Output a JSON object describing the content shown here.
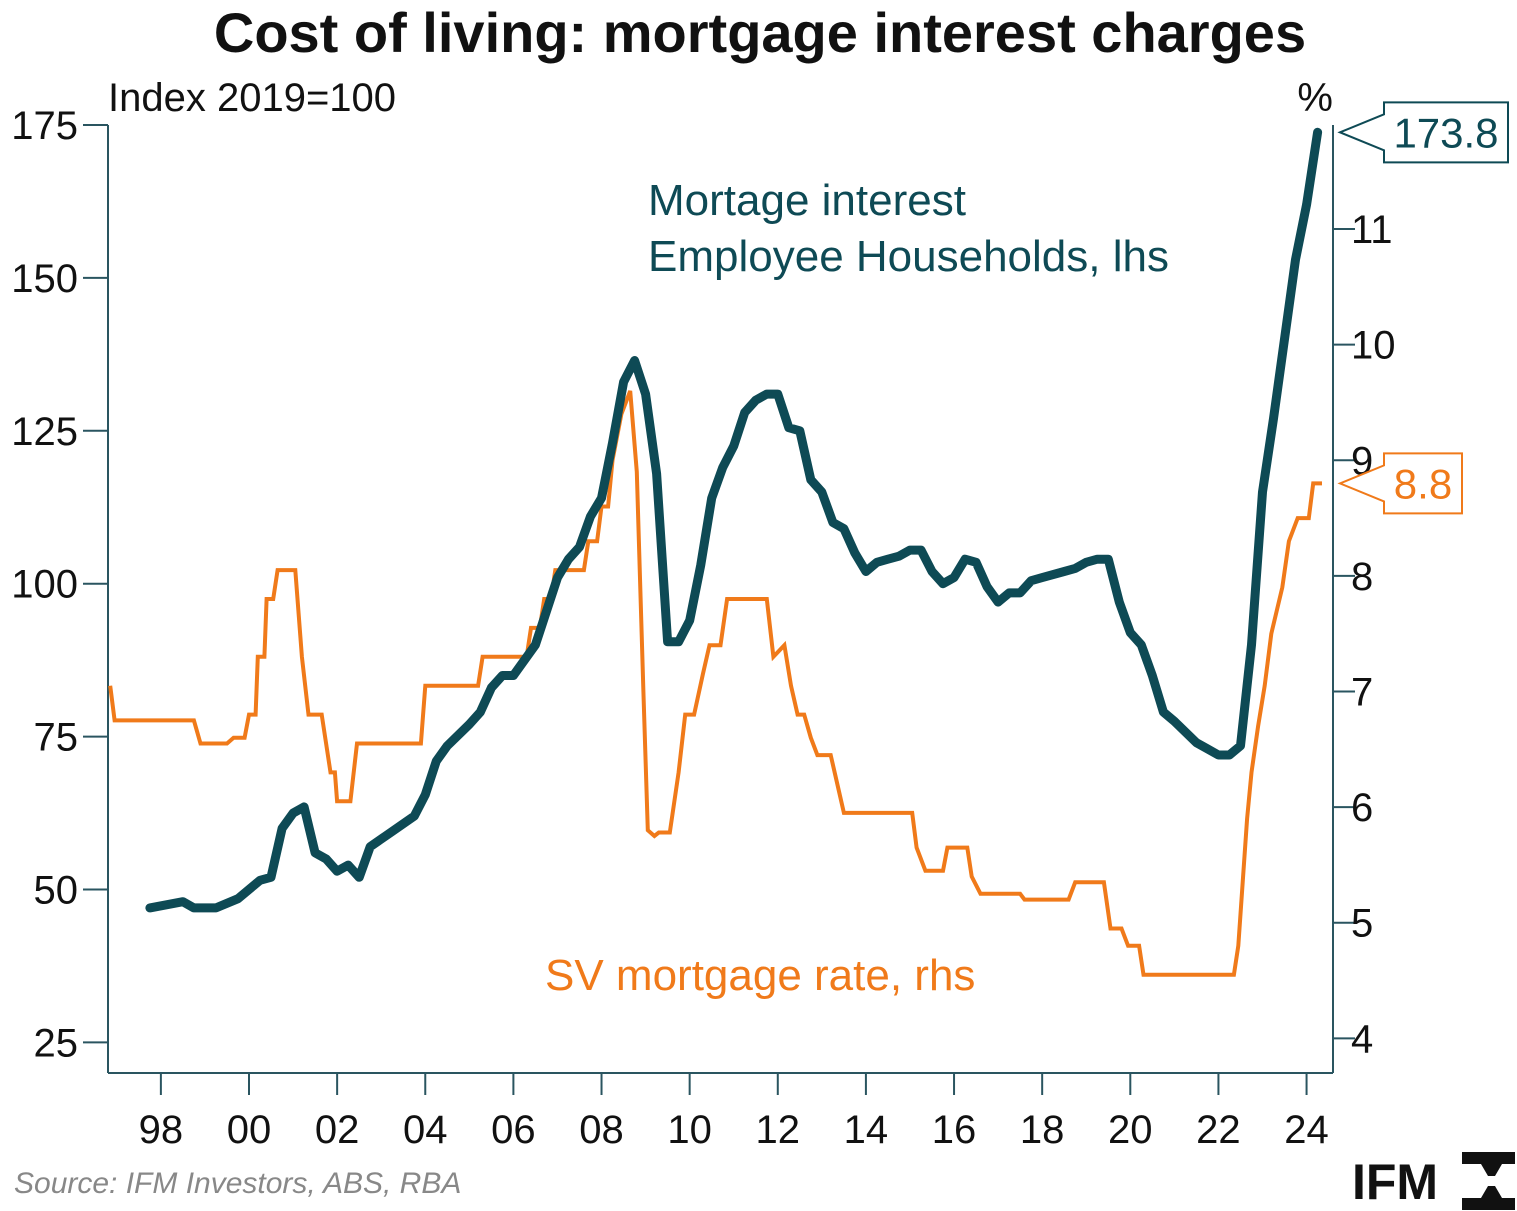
{
  "colors": {
    "teal": "#0e4a55",
    "orange": "#f07a1a",
    "axis": "#2a5560",
    "text": "#111111",
    "source": "#888888"
  },
  "chart_data": {
    "type": "line",
    "title": "Cost of living: mortgage interest charges",
    "ylabel_left": "Index 2019=100",
    "ylabel_right": "%",
    "x_ticks": [
      "98",
      "00",
      "02",
      "04",
      "06",
      "08",
      "10",
      "12",
      "14",
      "16",
      "18",
      "20",
      "22",
      "24"
    ],
    "x_tick_years": [
      1998,
      2000,
      2002,
      2004,
      2006,
      2008,
      2010,
      2012,
      2014,
      2016,
      2018,
      2020,
      2022,
      2024
    ],
    "xlim": [
      1996.8,
      2024.6
    ],
    "ylim_left": [
      20,
      175
    ],
    "y_ticks_left": [
      25,
      50,
      75,
      100,
      125,
      150,
      175
    ],
    "ylim_right": [
      3.7,
      11.9
    ],
    "y_ticks_right": [
      4,
      5,
      6,
      7,
      8,
      9,
      10,
      11
    ],
    "series": [
      {
        "name": "Mortage interest Employee Households, lhs",
        "label_lines": [
          "Mortage interest",
          "Employee Households, lhs"
        ],
        "axis": "left",
        "end_value": "173.8",
        "points": [
          [
            1997.75,
            47
          ],
          [
            1998.5,
            48
          ],
          [
            1998.75,
            47
          ],
          [
            1999.25,
            47
          ],
          [
            1999.75,
            48.5
          ],
          [
            2000.25,
            51.5
          ],
          [
            2000.5,
            52
          ],
          [
            2000.75,
            60
          ],
          [
            2001.0,
            62.5
          ],
          [
            2001.25,
            63.5
          ],
          [
            2001.5,
            56
          ],
          [
            2001.75,
            55
          ],
          [
            2002.0,
            53
          ],
          [
            2002.25,
            54
          ],
          [
            2002.5,
            52
          ],
          [
            2002.75,
            57
          ],
          [
            2003.25,
            59.5
          ],
          [
            2003.75,
            62
          ],
          [
            2004.0,
            65.5
          ],
          [
            2004.25,
            71
          ],
          [
            2004.5,
            73.5
          ],
          [
            2005.0,
            77
          ],
          [
            2005.25,
            79
          ],
          [
            2005.5,
            83
          ],
          [
            2005.75,
            85
          ],
          [
            2006.0,
            85
          ],
          [
            2006.5,
            90
          ],
          [
            2007.0,
            101
          ],
          [
            2007.25,
            104
          ],
          [
            2007.5,
            106
          ],
          [
            2007.75,
            111
          ],
          [
            2008.0,
            114
          ],
          [
            2008.25,
            123
          ],
          [
            2008.5,
            133
          ],
          [
            2008.75,
            136.5
          ],
          [
            2009.0,
            131
          ],
          [
            2009.25,
            118
          ],
          [
            2009.5,
            90.5
          ],
          [
            2009.75,
            90.5
          ],
          [
            2010.0,
            94
          ],
          [
            2010.25,
            103
          ],
          [
            2010.5,
            114
          ],
          [
            2010.75,
            119
          ],
          [
            2011.0,
            122.5
          ],
          [
            2011.25,
            128
          ],
          [
            2011.5,
            130
          ],
          [
            2011.75,
            131
          ],
          [
            2012.0,
            131
          ],
          [
            2012.25,
            125.5
          ],
          [
            2012.5,
            125
          ],
          [
            2012.75,
            117
          ],
          [
            2013.0,
            115
          ],
          [
            2013.25,
            110
          ],
          [
            2013.5,
            109
          ],
          [
            2013.75,
            105
          ],
          [
            2014.0,
            102
          ],
          [
            2014.25,
            103.5
          ],
          [
            2014.5,
            104
          ],
          [
            2014.75,
            104.5
          ],
          [
            2015.0,
            105.5
          ],
          [
            2015.25,
            105.5
          ],
          [
            2015.5,
            102
          ],
          [
            2015.75,
            100
          ],
          [
            2016.0,
            101
          ],
          [
            2016.25,
            104
          ],
          [
            2016.5,
            103.5
          ],
          [
            2016.75,
            99.5
          ],
          [
            2017.0,
            97
          ],
          [
            2017.25,
            98.5
          ],
          [
            2017.5,
            98.5
          ],
          [
            2017.75,
            100.5
          ],
          [
            2018.0,
            101
          ],
          [
            2018.5,
            102
          ],
          [
            2018.75,
            102.5
          ],
          [
            2019.0,
            103.5
          ],
          [
            2019.25,
            104
          ],
          [
            2019.5,
            104
          ],
          [
            2019.75,
            97
          ],
          [
            2020.0,
            92
          ],
          [
            2020.25,
            90
          ],
          [
            2020.5,
            85
          ],
          [
            2020.75,
            79
          ],
          [
            2021.0,
            77.5
          ],
          [
            2021.5,
            74
          ],
          [
            2021.75,
            73
          ],
          [
            2022.0,
            72
          ],
          [
            2022.25,
            72
          ],
          [
            2022.5,
            73.5
          ],
          [
            2022.75,
            90
          ],
          [
            2023.0,
            115
          ],
          [
            2023.25,
            127
          ],
          [
            2023.5,
            140
          ],
          [
            2023.75,
            153
          ],
          [
            2024.0,
            162
          ],
          [
            2024.25,
            173.8
          ]
        ]
      },
      {
        "name": "SV mortgage rate, rhs",
        "label_lines": [
          "SV mortgage rate, rhs"
        ],
        "axis": "right",
        "end_value": "8.8",
        "step": true,
        "points": [
          [
            1996.85,
            7.05
          ],
          [
            1996.95,
            6.75
          ],
          [
            1998.75,
            6.75
          ],
          [
            1998.9,
            6.55
          ],
          [
            1999.5,
            6.55
          ],
          [
            1999.65,
            6.6
          ],
          [
            1999.9,
            6.6
          ],
          [
            2000.0,
            6.8
          ],
          [
            2000.15,
            6.8
          ],
          [
            2000.2,
            7.3
          ],
          [
            2000.35,
            7.3
          ],
          [
            2000.4,
            7.8
          ],
          [
            2000.55,
            7.8
          ],
          [
            2000.65,
            8.05
          ],
          [
            2001.05,
            8.05
          ],
          [
            2001.2,
            7.3
          ],
          [
            2001.35,
            6.8
          ],
          [
            2001.65,
            6.8
          ],
          [
            2001.75,
            6.55
          ],
          [
            2001.85,
            6.3
          ],
          [
            2001.95,
            6.3
          ],
          [
            2002.0,
            6.05
          ],
          [
            2002.3,
            6.05
          ],
          [
            2002.45,
            6.55
          ],
          [
            2003.9,
            6.55
          ],
          [
            2004.0,
            7.05
          ],
          [
            2005.2,
            7.05
          ],
          [
            2005.3,
            7.3
          ],
          [
            2006.3,
            7.3
          ],
          [
            2006.4,
            7.55
          ],
          [
            2006.6,
            7.55
          ],
          [
            2006.7,
            7.8
          ],
          [
            2006.85,
            7.8
          ],
          [
            2006.95,
            8.05
          ],
          [
            2007.6,
            8.05
          ],
          [
            2007.7,
            8.3
          ],
          [
            2007.9,
            8.3
          ],
          [
            2008.0,
            8.6
          ],
          [
            2008.15,
            8.6
          ],
          [
            2008.25,
            9.0
          ],
          [
            2008.45,
            9.4
          ],
          [
            2008.55,
            9.5
          ],
          [
            2008.65,
            9.6
          ],
          [
            2008.8,
            8.9
          ],
          [
            2008.95,
            7.0
          ],
          [
            2009.05,
            5.8
          ],
          [
            2009.2,
            5.75
          ],
          [
            2009.3,
            5.78
          ],
          [
            2009.55,
            5.78
          ],
          [
            2009.75,
            6.3
          ],
          [
            2009.9,
            6.8
          ],
          [
            2010.1,
            6.8
          ],
          [
            2010.3,
            7.15
          ],
          [
            2010.45,
            7.4
          ],
          [
            2010.7,
            7.4
          ],
          [
            2010.85,
            7.8
          ],
          [
            2011.75,
            7.8
          ],
          [
            2011.9,
            7.3
          ],
          [
            2012.15,
            7.4
          ],
          [
            2012.3,
            7.05
          ],
          [
            2012.45,
            6.8
          ],
          [
            2012.6,
            6.8
          ],
          [
            2012.75,
            6.6
          ],
          [
            2012.9,
            6.45
          ],
          [
            2013.2,
            6.45
          ],
          [
            2013.35,
            6.2
          ],
          [
            2013.5,
            5.95
          ],
          [
            2015.05,
            5.95
          ],
          [
            2015.15,
            5.65
          ],
          [
            2015.35,
            5.45
          ],
          [
            2015.75,
            5.45
          ],
          [
            2015.85,
            5.65
          ],
          [
            2016.3,
            5.65
          ],
          [
            2016.4,
            5.4
          ],
          [
            2016.6,
            5.25
          ],
          [
            2017.5,
            5.25
          ],
          [
            2017.6,
            5.2
          ],
          [
            2018.6,
            5.2
          ],
          [
            2018.75,
            5.35
          ],
          [
            2019.05,
            5.35
          ],
          [
            2019.4,
            5.35
          ],
          [
            2019.55,
            4.95
          ],
          [
            2019.8,
            4.95
          ],
          [
            2019.95,
            4.8
          ],
          [
            2020.2,
            4.8
          ],
          [
            2020.3,
            4.55
          ],
          [
            2022.35,
            4.55
          ],
          [
            2022.45,
            4.8
          ],
          [
            2022.55,
            5.35
          ],
          [
            2022.65,
            5.9
          ],
          [
            2022.75,
            6.3
          ],
          [
            2022.9,
            6.7
          ],
          [
            2023.05,
            7.05
          ],
          [
            2023.2,
            7.5
          ],
          [
            2023.45,
            7.9
          ],
          [
            2023.6,
            8.3
          ],
          [
            2023.8,
            8.5
          ],
          [
            2024.05,
            8.5
          ],
          [
            2024.15,
            8.8
          ],
          [
            2024.35,
            8.8
          ]
        ]
      }
    ]
  },
  "footer": {
    "source": "Source: IFM Investors, ABS, RBA",
    "logo_text": "IFM"
  }
}
